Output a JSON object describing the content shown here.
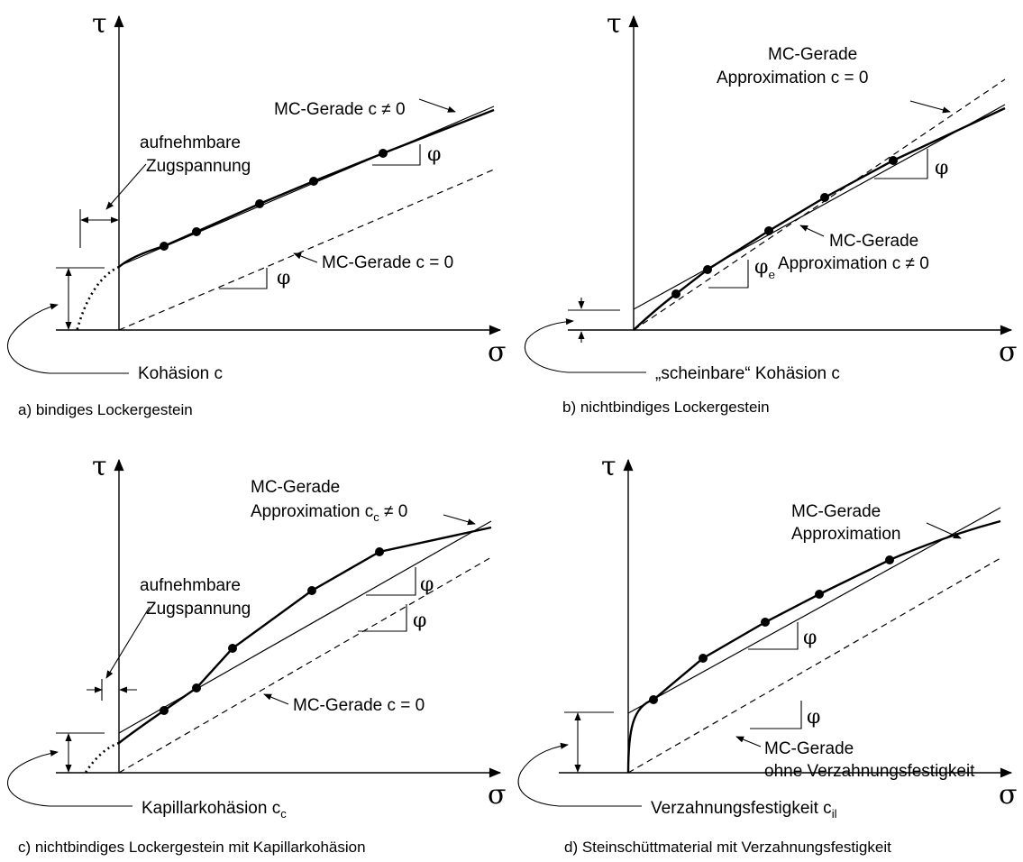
{
  "axes": {
    "tau": "τ",
    "sigma": "σ",
    "phi": "φ"
  },
  "panel_a": {
    "caption": "a) bindiges Lockergestein",
    "mc_c_ne_0": "MC-Gerade c ≠ 0",
    "tensile_line1": "aufnehmbare",
    "tensile_line2": "Zugspannung",
    "mc_c_0": "MC-Gerade c = 0",
    "cohesion": "Kohäsion c"
  },
  "panel_b": {
    "caption": "b) nichtbindiges Lockergestein",
    "mc_approx0_line1": "MC-Gerade",
    "mc_approx0_line2": "Approximation c = 0",
    "mc_approx_ne0_line1": "MC-Gerade",
    "mc_approx_ne0_line2": "Approximation c ≠ 0",
    "phi_e_base": "φ",
    "phi_e_sub": "e",
    "apparent_cohesion": "„scheinbare“ Kohäsion c"
  },
  "panel_c": {
    "caption": "c) nichtbindiges Lockergestein mit Kapillarkohäsion",
    "mc_line1": "MC-Gerade",
    "mc_line2_pre": "Approximation c",
    "mc_line2_sub": "c",
    "mc_line2_post": " ≠ 0",
    "tensile_line1": "aufnehmbare",
    "tensile_line2": "Zugspannung",
    "mc_c_0": "MC-Gerade c = 0",
    "capillary_pre": "Kapillarkohäsion c",
    "capillary_sub": "c"
  },
  "panel_d": {
    "caption": "d) Steinschüttmaterial mit Verzahnungsfestigkeit",
    "mc_line1": "MC-Gerade",
    "mc_line2": "Approximation",
    "mc_no_interlock_line1": "MC-Gerade",
    "mc_no_interlock_line2": "ohne Verzahnungsfestigkeit",
    "interlock_pre": "Verzahnungsfestigkeit c",
    "interlock_sub": "il"
  }
}
